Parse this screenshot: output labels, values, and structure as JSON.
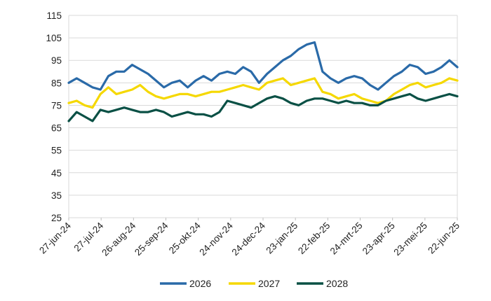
{
  "chart_data": {
    "type": "line",
    "title": "",
    "xlabel": "",
    "ylabel": "",
    "ylim": [
      25,
      115
    ],
    "yticks": [
      25,
      35,
      45,
      55,
      65,
      75,
      85,
      95,
      105,
      115
    ],
    "grid": "horizontal",
    "legend_position": "bottom",
    "x_tick_labels": [
      "27-jun-24",
      "27-jul-24",
      "26-aug-24",
      "25-sep-24",
      "25-okt-24",
      "24-nov-24",
      "24-dec-24",
      "23-jan-25",
      "22-feb-25",
      "24-mrt-25",
      "23-apr-25",
      "23-mei-25",
      "22-jun-25"
    ],
    "x": [
      "27-jun-24",
      "05-jul-24",
      "12-jul-24",
      "19-jul-24",
      "27-jul-24",
      "03-aug-24",
      "10-aug-24",
      "17-aug-24",
      "26-aug-24",
      "02-sep-24",
      "09-sep-24",
      "16-sep-24",
      "25-sep-24",
      "02-okt-24",
      "09-okt-24",
      "16-okt-24",
      "25-okt-24",
      "01-nov-24",
      "08-nov-24",
      "15-nov-24",
      "24-nov-24",
      "01-dec-24",
      "08-dec-24",
      "15-dec-24",
      "24-dec-24",
      "31-dec-24",
      "07-jan-25",
      "14-jan-25",
      "23-jan-25",
      "30-jan-25",
      "06-feb-25",
      "13-feb-25",
      "22-feb-25",
      "01-mrt-25",
      "08-mrt-25",
      "15-mrt-25",
      "24-mrt-25",
      "31-mrt-25",
      "07-apr-25",
      "14-apr-25",
      "23-apr-25",
      "30-apr-25",
      "07-mei-25",
      "14-mei-25",
      "23-mei-25",
      "30-mei-25",
      "06-jun-25",
      "13-jun-25",
      "22-jun-25",
      "27-jun-25"
    ],
    "series": [
      {
        "name": "2026",
        "color": "#2a6aa8",
        "values": [
          85,
          87,
          85,
          83,
          82,
          88,
          90,
          90,
          93,
          91,
          89,
          86,
          83,
          85,
          86,
          83,
          86,
          88,
          86,
          89,
          90,
          89,
          92,
          90,
          85,
          89,
          92,
          95,
          97,
          100,
          102,
          103,
          90,
          87,
          85,
          87,
          88,
          87,
          84,
          82,
          85,
          88,
          90,
          93,
          92,
          89,
          90,
          92,
          95,
          92
        ]
      },
      {
        "name": "2027",
        "color": "#f5d800",
        "values": [
          76,
          77,
          75,
          74,
          80,
          83,
          80,
          81,
          82,
          84,
          81,
          79,
          78,
          79,
          80,
          80,
          79,
          80,
          81,
          81,
          82,
          83,
          84,
          83,
          82,
          85,
          86,
          87,
          84,
          85,
          86,
          87,
          81,
          80,
          78,
          79,
          80,
          78,
          77,
          76,
          77,
          80,
          82,
          84,
          85,
          83,
          84,
          85,
          87,
          86
        ]
      },
      {
        "name": "2028",
        "color": "#0a5045",
        "values": [
          68,
          72,
          70,
          68,
          73,
          72,
          73,
          74,
          73,
          72,
          72,
          73,
          72,
          70,
          71,
          72,
          71,
          71,
          70,
          72,
          77,
          76,
          75,
          74,
          76,
          78,
          79,
          78,
          76,
          75,
          77,
          78,
          78,
          77,
          76,
          77,
          76,
          76,
          75,
          75,
          77,
          78,
          79,
          80,
          78,
          77,
          78,
          79,
          80,
          79
        ]
      }
    ]
  }
}
